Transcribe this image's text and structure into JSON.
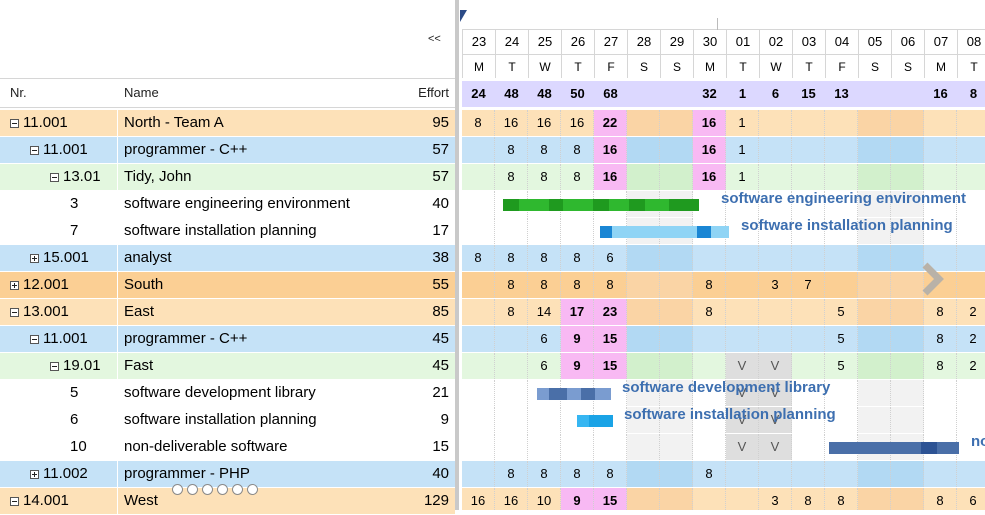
{
  "grid": {
    "collapse_label": "<<",
    "headers": {
      "nr": "Nr.",
      "name": "Name",
      "effort": "Effort"
    },
    "rows": [
      {
        "nr": "11.001",
        "name": "North - Team A",
        "effort": "95",
        "toggle": "minus",
        "indent": 0,
        "kind": "team"
      },
      {
        "nr": "11.001",
        "name": "programmer - C++",
        "effort": "57",
        "toggle": "minus",
        "indent": 1,
        "kind": "role"
      },
      {
        "nr": "13.01",
        "name": "Tidy, John",
        "effort": "57",
        "toggle": "minus",
        "indent": 2,
        "kind": "person"
      },
      {
        "nr": "3",
        "name": "software engineering environment",
        "effort": "40",
        "toggle": "",
        "indent": 3,
        "kind": "task"
      },
      {
        "nr": "7",
        "name": "software installation planning",
        "effort": "17",
        "toggle": "",
        "indent": 3,
        "kind": "task"
      },
      {
        "nr": "15.001",
        "name": "analyst",
        "effort": "38",
        "toggle": "plus",
        "indent": 1,
        "kind": "role"
      },
      {
        "nr": "12.001",
        "name": "South",
        "effort": "55",
        "toggle": "plus",
        "indent": 0,
        "kind": "team-selected"
      },
      {
        "nr": "13.001",
        "name": "East",
        "effort": "85",
        "toggle": "minus",
        "indent": 0,
        "kind": "team"
      },
      {
        "nr": "11.001",
        "name": "programmer - C++",
        "effort": "45",
        "toggle": "minus",
        "indent": 1,
        "kind": "role"
      },
      {
        "nr": "19.01",
        "name": "Fast",
        "effort": "45",
        "toggle": "minus",
        "indent": 2,
        "kind": "person"
      },
      {
        "nr": "5",
        "name": "software development library",
        "effort": "21",
        "toggle": "",
        "indent": 3,
        "kind": "task"
      },
      {
        "nr": "6",
        "name": "software installation planning",
        "effort": "9",
        "toggle": "",
        "indent": 3,
        "kind": "task"
      },
      {
        "nr": "10",
        "name": "non-deliverable software",
        "effort": "15",
        "toggle": "",
        "indent": 3,
        "kind": "task"
      },
      {
        "nr": "11.002",
        "name": "programmer - PHP",
        "effort": "40",
        "toggle": "plus",
        "indent": 1,
        "kind": "role"
      },
      {
        "nr": "14.001",
        "name": "West",
        "effort": "129",
        "toggle": "minus",
        "indent": 0,
        "kind": "team"
      }
    ]
  },
  "timeline": {
    "days": [
      "23",
      "24",
      "25",
      "26",
      "27",
      "28",
      "29",
      "30",
      "01",
      "02",
      "03",
      "04",
      "05",
      "06",
      "07",
      "08"
    ],
    "weekdays": [
      "M",
      "T",
      "W",
      "T",
      "F",
      "S",
      "S",
      "M",
      "T",
      "W",
      "T",
      "F",
      "S",
      "S",
      "M",
      "T"
    ],
    "totals": [
      "24",
      "48",
      "48",
      "50",
      "68",
      "",
      "",
      "32",
      "1",
      "6",
      "15",
      "13",
      "",
      "",
      "16",
      "8"
    ],
    "row_values": [
      [
        "8",
        "16",
        "16",
        "16",
        "22",
        "",
        "",
        "16",
        "1",
        "",
        "",
        "",
        "",
        "",
        "",
        ""
      ],
      [
        "",
        "8",
        "8",
        "8",
        "16",
        "",
        "",
        "16",
        "1",
        "",
        "",
        "",
        "",
        "",
        "",
        ""
      ],
      [
        "",
        "8",
        "8",
        "8",
        "16",
        "",
        "",
        "16",
        "1",
        "",
        "",
        "",
        "",
        "",
        "",
        ""
      ],
      [
        "",
        "",
        "",
        "",
        "",
        "",
        "",
        "",
        "",
        "",
        "",
        "",
        "",
        "",
        "",
        ""
      ],
      [
        "",
        "",
        "",
        "",
        "",
        "",
        "",
        "",
        "",
        "",
        "",
        "",
        "",
        "",
        "",
        ""
      ],
      [
        "8",
        "8",
        "8",
        "8",
        "6",
        "",
        "",
        "",
        "",
        "",
        "",
        "",
        "",
        "",
        "",
        ""
      ],
      [
        "",
        "8",
        "8",
        "8",
        "8",
        "",
        "",
        "8",
        "",
        "3",
        "7",
        "",
        "",
        "",
        "",
        ""
      ],
      [
        "",
        "8",
        "14",
        "17",
        "23",
        "",
        "",
        "8",
        "",
        "",
        "",
        "5",
        "",
        "",
        "8",
        "2"
      ],
      [
        "",
        "",
        "6",
        "9",
        "15",
        "",
        "",
        "",
        "",
        "",
        "",
        "5",
        "",
        "",
        "8",
        "2"
      ],
      [
        "",
        "",
        "6",
        "9",
        "15",
        "",
        "",
        "",
        "V",
        "V",
        "",
        "5",
        "",
        "",
        "8",
        "2"
      ],
      [
        "",
        "",
        "",
        "",
        "",
        "",
        "",
        "",
        "V",
        "V",
        "",
        "",
        "",
        "",
        "",
        ""
      ],
      [
        "",
        "",
        "",
        "",
        "",
        "",
        "",
        "",
        "V",
        "V",
        "",
        "",
        "",
        "",
        "",
        ""
      ],
      [
        "",
        "",
        "",
        "",
        "",
        "",
        "",
        "",
        "V",
        "V",
        "",
        "",
        "",
        "",
        "",
        ""
      ],
      [
        "",
        "8",
        "8",
        "8",
        "8",
        "",
        "",
        "8",
        "",
        "",
        "",
        "",
        "",
        "",
        "",
        ""
      ],
      [
        "16",
        "16",
        "10",
        "9",
        "15",
        "",
        "",
        "",
        "",
        "3",
        "8",
        "8",
        "",
        "",
        "8",
        "6"
      ]
    ],
    "bars": [
      {
        "row": 3,
        "label": "software engineering environment",
        "color": "#2fb82f"
      },
      {
        "row": 4,
        "label": "software installation planning",
        "color": "#8fd4f5"
      },
      {
        "row": 10,
        "label": "software development library",
        "color": "#4a6fa8"
      },
      {
        "row": 11,
        "label": "software installation planning",
        "color": "#1aa3e6"
      },
      {
        "row": 12,
        "label": "no",
        "color": "#4a6fa8"
      }
    ]
  },
  "colors": {
    "team": "#fde1b8",
    "team_selected": "#fbcf94",
    "role": "#c5e2f7",
    "person": "#e3f7df",
    "task": "#ffffff",
    "weekend": "#cfcfcf",
    "highlight": "#f8b9f3",
    "totals_bg": "#dcd8ff"
  },
  "pager": {
    "count": 6
  }
}
